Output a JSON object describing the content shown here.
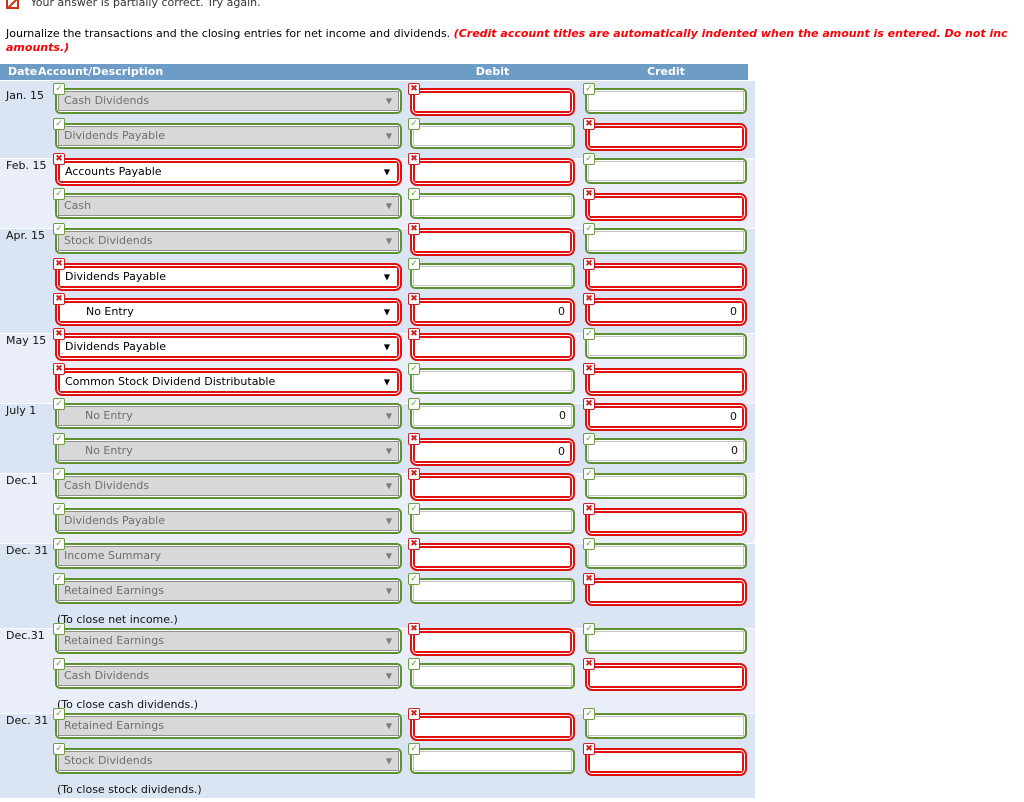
{
  "alert": {
    "text": "Your answer is partially correct.  Try again."
  },
  "instruction": {
    "normal": "Journalize the transactions and the closing entries for net income and dividends. ",
    "red_line1": "(Credit account titles are automatically indented when the amount is entered. Do not inc",
    "red_line2": "amounts.)"
  },
  "icons": {
    "correct": "✓",
    "wrong": "✖"
  },
  "colors": {
    "header_blue": "#6d9cc6",
    "correct_green": "#5e9130",
    "wrong_red": "#e01111",
    "block_blue": "#dbe4f2",
    "block_light": "#e9eef8",
    "instruction_red": "#fb0006"
  },
  "table": {
    "headers": {
      "date": "Date",
      "account": "Account/Description",
      "debit": "Debit",
      "credit": "Credit"
    },
    "blocks": [
      {
        "date": "Jan. 15",
        "note": "",
        "rows": [
          {
            "account": {
              "label": "Cash Dividends",
              "state": "correct"
            },
            "debit": {
              "value": "",
              "state": "wrong"
            },
            "credit": {
              "value": "",
              "state": "correct"
            }
          },
          {
            "account": {
              "label": "Dividends Payable",
              "state": "correct"
            },
            "debit": {
              "value": "",
              "state": "correct"
            },
            "credit": {
              "value": "",
              "state": "wrong"
            }
          }
        ]
      },
      {
        "date": "Feb. 15",
        "note": "",
        "rows": [
          {
            "account": {
              "label": "Accounts Payable",
              "state": "wrong"
            },
            "debit": {
              "value": "",
              "state": "wrong"
            },
            "credit": {
              "value": "",
              "state": "correct"
            }
          },
          {
            "account": {
              "label": "Cash",
              "state": "correct"
            },
            "debit": {
              "value": "",
              "state": "correct"
            },
            "credit": {
              "value": "",
              "state": "wrong"
            }
          }
        ]
      },
      {
        "date": "Apr. 15",
        "note": "",
        "rows": [
          {
            "account": {
              "label": "Stock Dividends",
              "state": "correct"
            },
            "debit": {
              "value": "",
              "state": "wrong"
            },
            "credit": {
              "value": "",
              "state": "correct"
            }
          },
          {
            "account": {
              "label": "Dividends Payable",
              "state": "wrong"
            },
            "debit": {
              "value": "",
              "state": "correct"
            },
            "credit": {
              "value": "",
              "state": "wrong"
            }
          },
          {
            "account": {
              "label": "      No Entry",
              "state": "wrong"
            },
            "debit": {
              "value": "0",
              "state": "wrong"
            },
            "credit": {
              "value": "0",
              "state": "wrong"
            }
          }
        ]
      },
      {
        "date": "May 15",
        "note": "",
        "rows": [
          {
            "account": {
              "label": "Dividends Payable",
              "state": "wrong"
            },
            "debit": {
              "value": "",
              "state": "wrong"
            },
            "credit": {
              "value": "",
              "state": "correct"
            }
          },
          {
            "account": {
              "label": "Common Stock Dividend Distributable",
              "state": "wrong"
            },
            "debit": {
              "value": "",
              "state": "correct"
            },
            "credit": {
              "value": "",
              "state": "wrong"
            }
          }
        ]
      },
      {
        "date": "July 1",
        "note": "",
        "rows": [
          {
            "account": {
              "label": "      No Entry",
              "state": "correct"
            },
            "debit": {
              "value": "0",
              "state": "correct"
            },
            "credit": {
              "value": "0",
              "state": "wrong"
            }
          },
          {
            "account": {
              "label": "      No Entry",
              "state": "correct"
            },
            "debit": {
              "value": "0",
              "state": "wrong"
            },
            "credit": {
              "value": "0",
              "state": "correct"
            }
          }
        ]
      },
      {
        "date": "Dec.1",
        "note": "",
        "rows": [
          {
            "account": {
              "label": "Cash Dividends",
              "state": "correct"
            },
            "debit": {
              "value": "",
              "state": "wrong"
            },
            "credit": {
              "value": "",
              "state": "correct"
            }
          },
          {
            "account": {
              "label": "Dividends Payable",
              "state": "correct"
            },
            "debit": {
              "value": "",
              "state": "correct"
            },
            "credit": {
              "value": "",
              "state": "wrong"
            }
          }
        ]
      },
      {
        "date": "Dec. 31",
        "note": "(To close net income.)",
        "rows": [
          {
            "account": {
              "label": "Income Summary",
              "state": "correct"
            },
            "debit": {
              "value": "",
              "state": "wrong"
            },
            "credit": {
              "value": "",
              "state": "correct"
            }
          },
          {
            "account": {
              "label": "Retained Earnings",
              "state": "correct"
            },
            "debit": {
              "value": "",
              "state": "correct"
            },
            "credit": {
              "value": "",
              "state": "wrong"
            }
          }
        ]
      },
      {
        "date": "Dec.31",
        "note": "(To close cash dividends.)",
        "rows": [
          {
            "account": {
              "label": "Retained Earnings",
              "state": "correct"
            },
            "debit": {
              "value": "",
              "state": "wrong"
            },
            "credit": {
              "value": "",
              "state": "correct"
            }
          },
          {
            "account": {
              "label": "Cash Dividends",
              "state": "correct"
            },
            "debit": {
              "value": "",
              "state": "correct"
            },
            "credit": {
              "value": "",
              "state": "wrong"
            }
          }
        ]
      },
      {
        "date": "Dec. 31",
        "note": "(To close stock dividends.)",
        "rows": [
          {
            "account": {
              "label": "Retained Earnings",
              "state": "correct"
            },
            "debit": {
              "value": "",
              "state": "wrong"
            },
            "credit": {
              "value": "",
              "state": "correct"
            }
          },
          {
            "account": {
              "label": "Stock Dividends",
              "state": "correct"
            },
            "debit": {
              "value": "",
              "state": "correct"
            },
            "credit": {
              "value": "",
              "state": "wrong"
            }
          }
        ]
      }
    ]
  }
}
